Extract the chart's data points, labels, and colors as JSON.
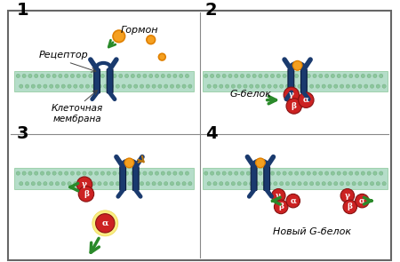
{
  "bg_color": "#ffffff",
  "border_color": "#888888",
  "membrane_color": "#a8d8c0",
  "membrane_detail_color": "#7bbf8a",
  "receptor_color": "#1a3a6e",
  "hormone_color": "#f5a020",
  "hormone_outline": "#e08000",
  "gprotein_color": "#cc2222",
  "gprotein_outline": "#881111",
  "arrow_color": "#2a8a2a",
  "label_color": "#000000",
  "texts": {
    "receptor": "Рецептор",
    "hormone": "Гормон",
    "membrane": "Клеточная\nмембрана",
    "gbelok": "G-белок",
    "noviy_gbelok": "Новый G-белок"
  }
}
